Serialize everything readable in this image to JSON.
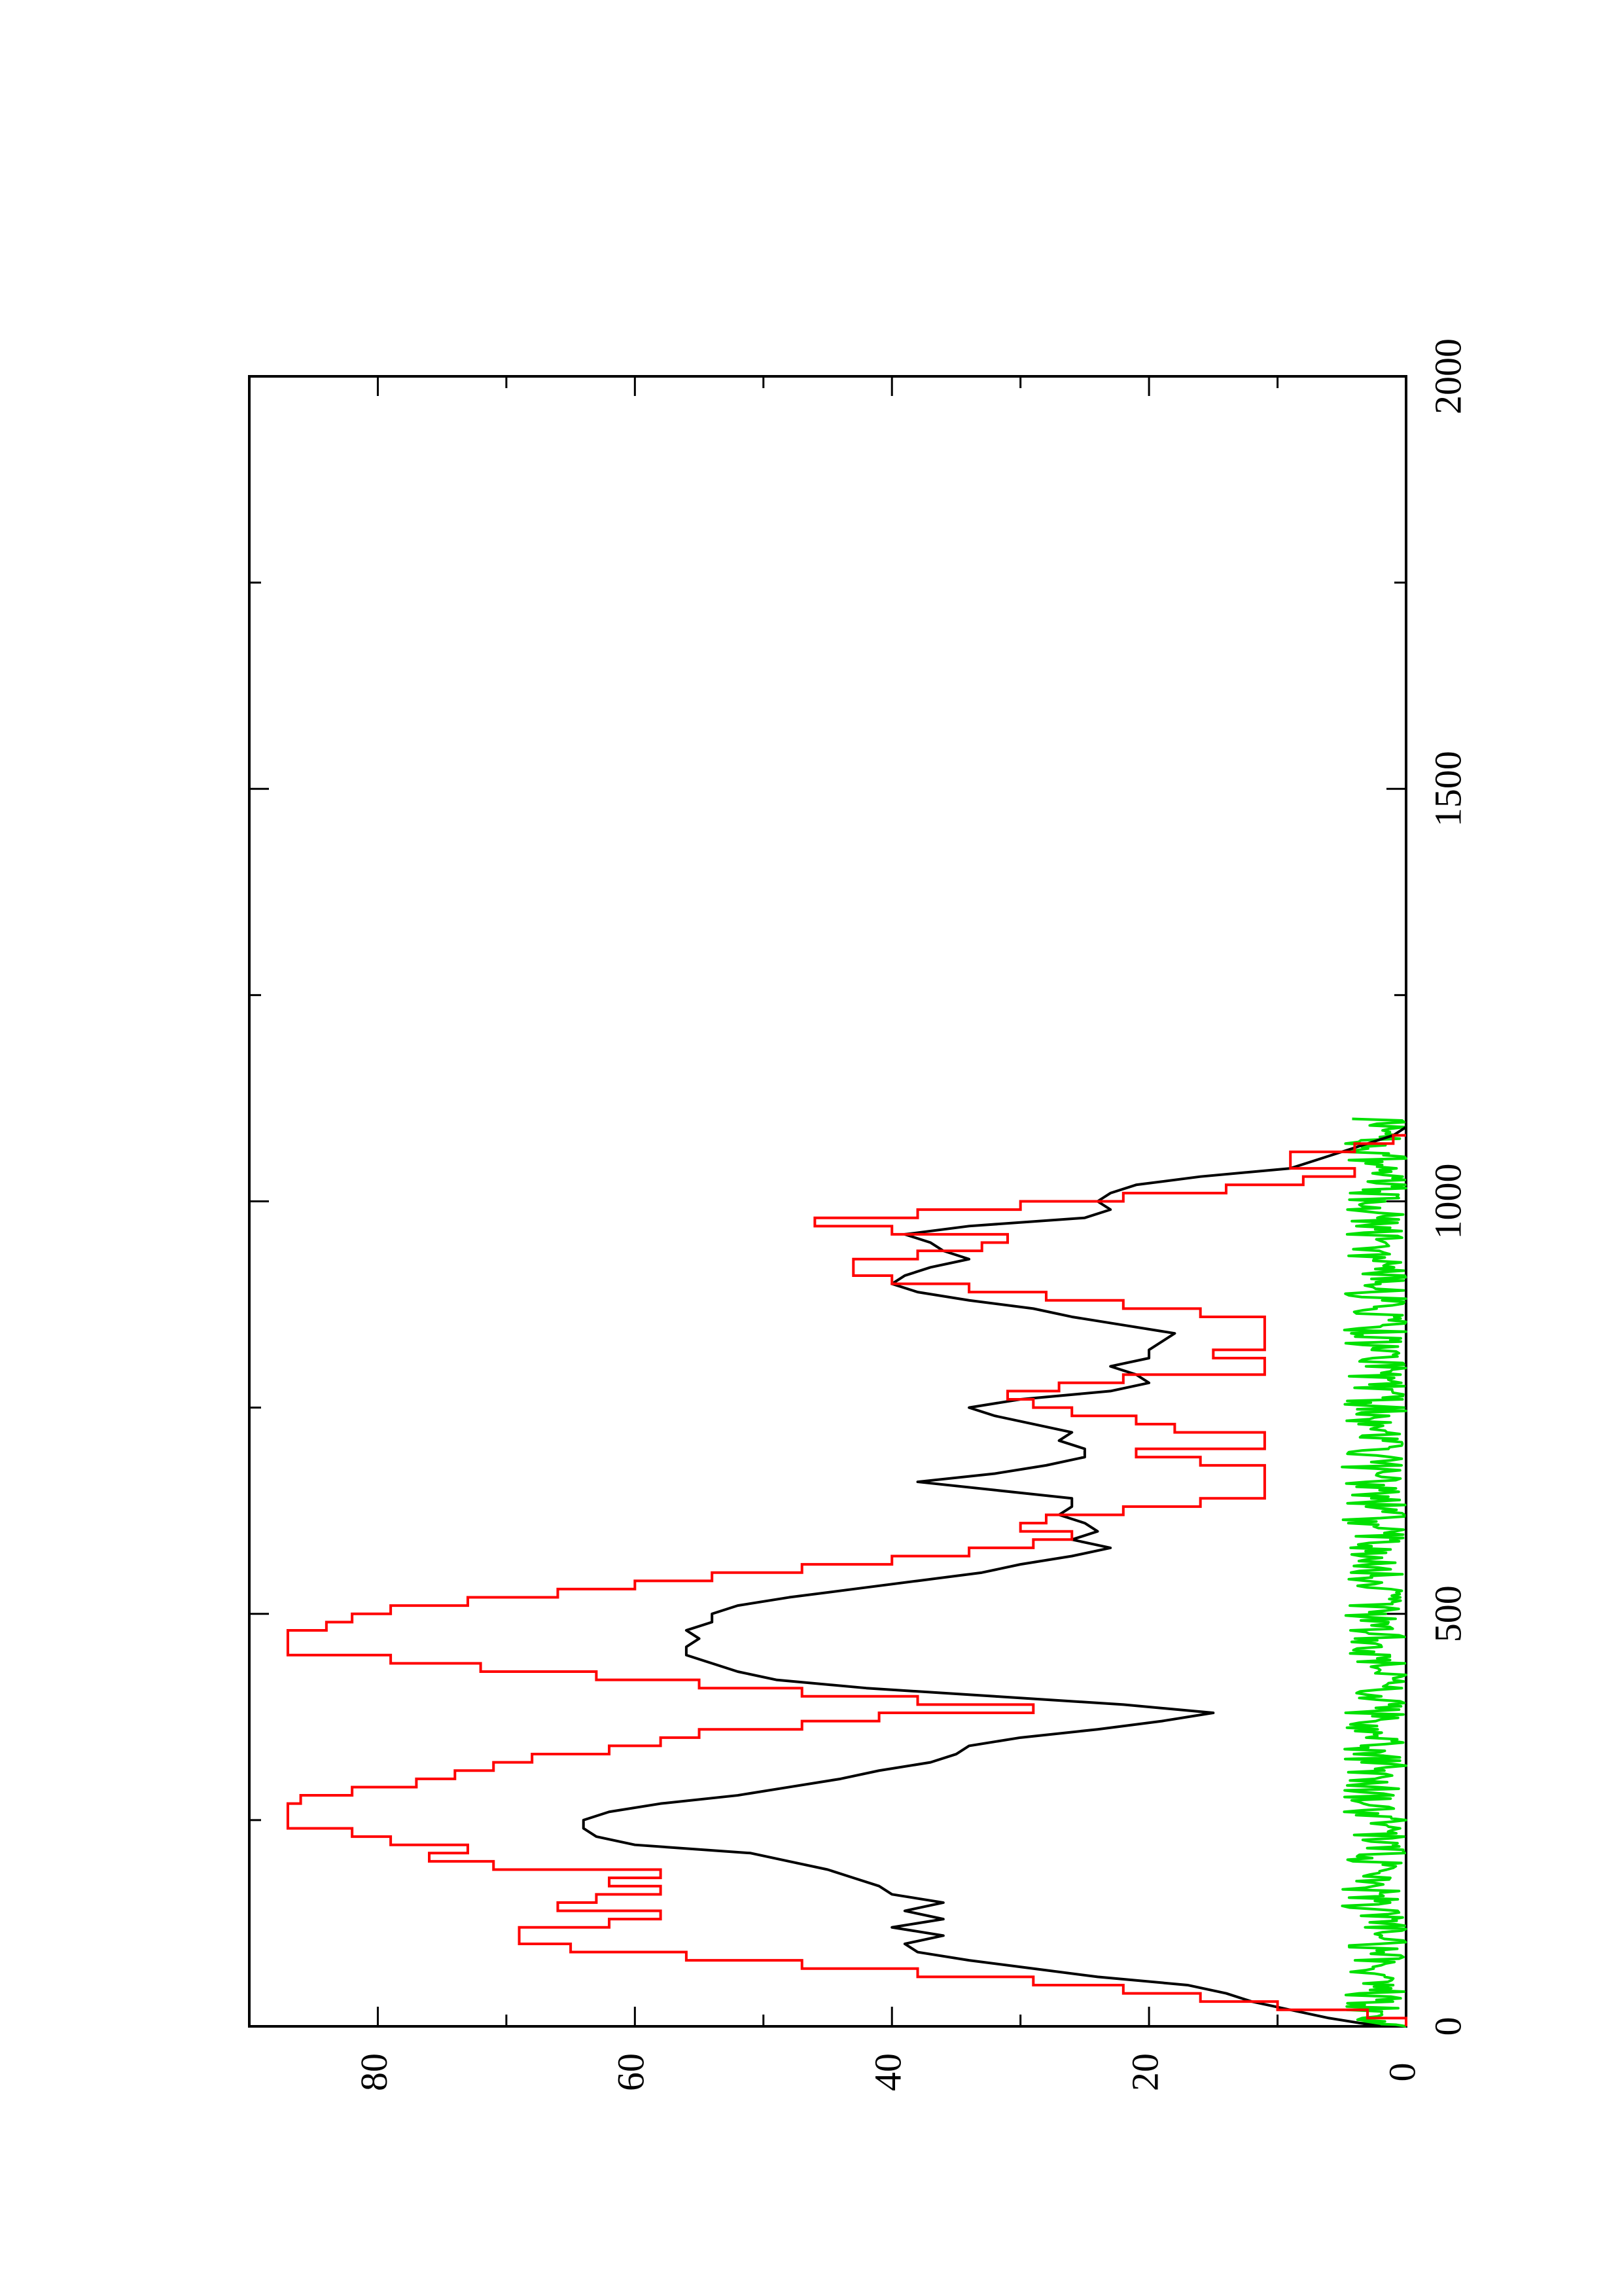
{
  "chart_data": {
    "type": "line",
    "orientation": "rotated 90° counter-clockwise (landscape plot printed on portrait page)",
    "title": "",
    "xlabel": "",
    "ylabel": "",
    "xlim": [
      0,
      2000
    ],
    "ylim": [
      0,
      90
    ],
    "x_ticks": [
      0,
      500,
      1000,
      1500,
      2000
    ],
    "x_tick_labels": [
      "0",
      "500",
      "1000",
      "1500",
      "2000"
    ],
    "y_ticks": [
      0,
      20,
      40,
      60,
      80
    ],
    "y_tick_labels": [
      "0",
      "20",
      "40",
      "60",
      "80"
    ],
    "grid": false,
    "legend": "none",
    "series": [
      {
        "color": "#ff0000",
        "style": "step",
        "x": [
          0,
          10,
          20,
          30,
          40,
          50,
          60,
          70,
          80,
          90,
          100,
          110,
          120,
          130,
          140,
          150,
          160,
          170,
          180,
          190,
          200,
          210,
          220,
          230,
          240,
          250,
          260,
          270,
          280,
          290,
          300,
          310,
          320,
          330,
          340,
          350,
          360,
          370,
          380,
          390,
          400,
          410,
          420,
          430,
          440,
          450,
          460,
          470,
          480,
          490,
          500,
          510,
          520,
          530,
          540,
          550,
          560,
          570,
          580,
          590,
          600,
          610,
          620,
          630,
          640,
          650,
          660,
          670,
          680,
          690,
          700,
          710,
          720,
          730,
          740,
          750,
          760,
          770,
          780,
          790,
          800,
          810,
          820,
          830,
          840,
          850,
          860,
          870,
          880,
          890,
          900,
          910,
          920,
          930,
          940,
          950,
          960,
          970,
          980,
          990,
          1000,
          1010,
          1020,
          1030,
          1040,
          1050,
          1060,
          1070,
          1080
        ],
        "values": [
          0,
          3,
          10,
          16,
          22,
          29,
          38,
          47,
          56,
          65,
          69,
          69,
          62,
          58,
          66,
          63,
          58,
          62,
          58,
          71,
          76,
          73,
          79,
          82,
          87,
          87,
          87,
          86,
          82,
          77,
          74,
          71,
          68,
          62,
          58,
          55,
          47,
          41,
          29,
          38,
          47,
          55,
          63,
          72,
          79,
          87,
          87,
          87,
          84,
          82,
          79,
          73,
          66,
          60,
          54,
          47,
          40,
          34,
          29,
          26,
          30,
          28,
          22,
          16,
          11,
          11,
          11,
          11,
          16,
          21,
          11,
          11,
          18,
          21,
          26,
          29,
          31,
          27,
          22,
          11,
          11,
          15,
          11,
          11,
          11,
          11,
          16,
          22,
          28,
          34,
          40,
          43,
          43,
          38,
          33,
          31,
          40,
          46,
          38,
          30,
          22,
          14,
          8,
          4,
          9,
          9,
          4,
          1,
          0
        ]
      },
      {
        "color": "#000000",
        "style": "line",
        "x": [
          0,
          10,
          20,
          30,
          40,
          50,
          60,
          70,
          80,
          90,
          100,
          110,
          120,
          130,
          140,
          150,
          160,
          170,
          180,
          190,
          200,
          210,
          220,
          230,
          240,
          250,
          260,
          270,
          280,
          290,
          300,
          310,
          320,
          330,
          340,
          350,
          360,
          370,
          380,
          390,
          400,
          410,
          420,
          430,
          440,
          450,
          460,
          470,
          480,
          490,
          500,
          510,
          520,
          530,
          540,
          550,
          560,
          570,
          580,
          590,
          600,
          610,
          620,
          630,
          640,
          650,
          660,
          670,
          680,
          690,
          700,
          710,
          720,
          730,
          740,
          750,
          760,
          770,
          780,
          790,
          800,
          810,
          820,
          830,
          840,
          850,
          860,
          870,
          880,
          890,
          900,
          910,
          920,
          930,
          940,
          950,
          960,
          970,
          980,
          990,
          1000,
          1010,
          1020,
          1030,
          1040,
          1050,
          1060,
          1070,
          1080,
          1090
        ],
        "values": [
          2,
          6,
          9,
          12,
          14,
          17,
          24,
          29,
          34,
          38,
          39,
          36,
          40,
          36,
          39,
          36,
          40,
          41,
          43,
          45,
          48,
          51,
          60,
          63,
          64,
          64,
          62,
          58,
          52,
          48,
          44,
          41,
          37,
          35,
          34,
          30,
          24,
          19,
          15,
          22,
          32,
          42,
          49,
          52,
          54,
          56,
          56,
          55,
          56,
          54,
          54,
          52,
          48,
          43,
          38,
          33,
          30,
          26,
          23,
          26,
          24,
          25,
          27,
          26,
          26,
          32,
          38,
          32,
          28,
          25,
          25,
          27,
          26,
          29,
          32,
          34,
          30,
          23,
          20,
          21,
          23,
          20,
          20,
          19,
          18,
          22,
          26,
          29,
          34,
          38,
          40,
          39,
          37,
          34,
          36,
          37,
          39,
          34,
          25,
          23,
          24,
          23,
          21,
          16,
          9,
          7,
          5,
          3,
          1,
          0
        ]
      },
      {
        "color": "#00e000",
        "style": "line",
        "note": "noise-like series near zero",
        "x_range": [
          0,
          1100
        ],
        "value_range": [
          0,
          5
        ]
      }
    ]
  }
}
